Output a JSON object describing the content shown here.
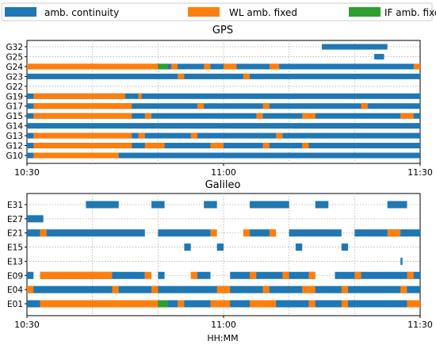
{
  "colors": {
    "continuity": "#1f77b4",
    "wl_fixed": "#ff7f0e",
    "if_fixed": "#2ca02c"
  },
  "legend": {
    "items": [
      {
        "label": "amb. continuity",
        "color": "#1f77b4"
      },
      {
        "label": "WL amb. fixed",
        "color": "#ff7f0e"
      },
      {
        "label": "IF amb. fixed",
        "color": "#2ca02c"
      }
    ]
  },
  "xlabel": "HH:MM",
  "chart_data": [
    {
      "type": "timeline",
      "title": "GPS",
      "xlim": [
        "10:30",
        "11:30"
      ],
      "xticks": [
        "10:30",
        "11:00",
        "11:30"
      ],
      "grid": true,
      "satellites": [
        {
          "name": "G32",
          "continuity": [
            [
              "11:15",
              "11:25"
            ]
          ],
          "wl_fixed": [],
          "if_fixed": []
        },
        {
          "name": "G25",
          "continuity": [
            [
              "11:23",
              "11:24.5"
            ]
          ],
          "wl_fixed": [],
          "if_fixed": []
        },
        {
          "name": "G24",
          "continuity": [
            [
              "10:30",
              "11:30"
            ]
          ],
          "wl_fixed": [
            [
              "10:30",
              "10:50"
            ],
            [
              "10:52",
              "10:53"
            ],
            [
              "10:57",
              "10:58"
            ],
            [
              "11:00",
              "11:02"
            ],
            [
              "11:07",
              "11:08.5"
            ],
            [
              "11:29",
              "11:30"
            ]
          ],
          "if_fixed": [
            [
              "10:50",
              "10:51.5"
            ]
          ]
        },
        {
          "name": "G23",
          "continuity": [
            [
              "10:30",
              "11:30"
            ]
          ],
          "wl_fixed": [
            [
              "10:53",
              "10:54"
            ],
            [
              "11:03",
              "11:04"
            ]
          ],
          "if_fixed": []
        },
        {
          "name": "G22",
          "continuity": [],
          "wl_fixed": [],
          "if_fixed": []
        },
        {
          "name": "G19",
          "continuity": [
            [
              "10:30",
              "11:30"
            ]
          ],
          "wl_fixed": [
            [
              "10:31",
              "10:45"
            ],
            [
              "10:47",
              "10:47.5"
            ]
          ],
          "if_fixed": []
        },
        {
          "name": "G17",
          "continuity": [
            [
              "10:30",
              "11:30"
            ]
          ],
          "wl_fixed": [
            [
              "10:31",
              "10:46"
            ],
            [
              "10:56",
              "10:57"
            ],
            [
              "11:06",
              "11:07"
            ],
            [
              "11:21",
              "11:22"
            ]
          ],
          "if_fixed": []
        },
        {
          "name": "G15",
          "continuity": [
            [
              "10:30",
              "11:30"
            ]
          ],
          "wl_fixed": [
            [
              "10:31",
              "10:46"
            ],
            [
              "10:48",
              "10:49"
            ],
            [
              "11:05",
              "11:06"
            ],
            [
              "11:12",
              "11:14"
            ],
            [
              "11:27",
              "11:29"
            ]
          ],
          "if_fixed": []
        },
        {
          "name": "G14",
          "continuity": [
            [
              "10:30",
              "11:30"
            ]
          ],
          "wl_fixed": [],
          "if_fixed": []
        },
        {
          "name": "G13",
          "continuity": [
            [
              "10:30",
              "11:30"
            ]
          ],
          "wl_fixed": [
            [
              "10:31",
              "10:46"
            ],
            [
              "10:47",
              "10:48"
            ],
            [
              "10:55",
              "10:56"
            ],
            [
              "11:08",
              "11:09"
            ]
          ],
          "if_fixed": []
        },
        {
          "name": "G12",
          "continuity": [
            [
              "10:30",
              "11:30"
            ]
          ],
          "wl_fixed": [
            [
              "10:31",
              "10:46"
            ],
            [
              "10:48",
              "10:51"
            ],
            [
              "10:58",
              "11:00"
            ],
            [
              "11:06",
              "11:07"
            ],
            [
              "11:12",
              "11:13"
            ]
          ],
          "if_fixed": []
        },
        {
          "name": "G10",
          "continuity": [
            [
              "10:30",
              "11:30"
            ]
          ],
          "wl_fixed": [
            [
              "10:31",
              "10:44"
            ]
          ],
          "if_fixed": []
        }
      ]
    },
    {
      "type": "timeline",
      "title": "Galileo",
      "xlim": [
        "10:30",
        "11:30"
      ],
      "xticks": [
        "10:30",
        "11:00",
        "11:30"
      ],
      "grid": true,
      "satellites": [
        {
          "name": "E31",
          "continuity": [
            [
              "10:39",
              "10:44"
            ],
            [
              "10:49",
              "10:51"
            ],
            [
              "10:57",
              "10:59"
            ],
            [
              "11:04",
              "11:10"
            ],
            [
              "11:14",
              "11:16"
            ],
            [
              "11:25",
              "11:28"
            ]
          ],
          "wl_fixed": [],
          "if_fixed": []
        },
        {
          "name": "E27",
          "continuity": [
            [
              "10:30",
              "10:32.5"
            ]
          ],
          "wl_fixed": [],
          "if_fixed": []
        },
        {
          "name": "E21",
          "continuity": [
            [
              "10:30",
              "10:48"
            ],
            [
              "10:50",
              "10:58"
            ],
            [
              "11:04",
              "11:08"
            ],
            [
              "11:10",
              "11:18"
            ],
            [
              "11:20",
              "11:30"
            ]
          ],
          "wl_fixed": [
            [
              "10:32",
              "10:33"
            ],
            [
              "10:58",
              "10:59"
            ],
            [
              "11:03",
              "11:04"
            ],
            [
              "11:07",
              "11:08"
            ],
            [
              "11:25",
              "11:27"
            ]
          ],
          "if_fixed": []
        },
        {
          "name": "E15",
          "continuity": [
            [
              "10:54",
              "10:55"
            ],
            [
              "10:59",
              "11:00"
            ],
            [
              "11:11",
              "11:12"
            ],
            [
              "11:18",
              "11:19"
            ]
          ],
          "wl_fixed": [],
          "if_fixed": []
        },
        {
          "name": "E13",
          "continuity": [
            [
              "11:27",
              "11:27.3"
            ]
          ],
          "wl_fixed": [],
          "if_fixed": []
        },
        {
          "name": "E09",
          "continuity": [
            [
              "10:30",
              "10:31"
            ],
            [
              "10:32",
              "10:48"
            ],
            [
              "10:50",
              "10:51"
            ],
            [
              "10:56",
              "10:58"
            ],
            [
              "11:01",
              "11:14"
            ],
            [
              "11:17",
              "11:30"
            ]
          ],
          "wl_fixed": [
            [
              "10:32",
              "10:43"
            ],
            [
              "10:48",
              "10:49"
            ],
            [
              "10:55",
              "10:56"
            ],
            [
              "11:04",
              "11:05"
            ],
            [
              "11:09",
              "11:10"
            ],
            [
              "11:13",
              "11:14"
            ],
            [
              "11:20",
              "11:21"
            ],
            [
              "11:28",
              "11:29"
            ]
          ],
          "if_fixed": []
        },
        {
          "name": "E04",
          "continuity": [
            [
              "10:30",
              "11:30"
            ]
          ],
          "wl_fixed": [
            [
              "10:30",
              "10:31"
            ],
            [
              "10:43",
              "10:44"
            ],
            [
              "10:49",
              "10:50"
            ],
            [
              "10:59",
              "11:01"
            ],
            [
              "11:06",
              "11:07"
            ],
            [
              "11:12",
              "11:14"
            ],
            [
              "11:18",
              "11:19"
            ],
            [
              "11:27",
              "11:28"
            ]
          ],
          "if_fixed": []
        },
        {
          "name": "E01",
          "continuity": [
            [
              "10:30",
              "11:30"
            ]
          ],
          "wl_fixed": [
            [
              "10:32",
              "10:50"
            ],
            [
              "10:53",
              "10:54"
            ],
            [
              "10:58",
              "11:01"
            ],
            [
              "11:04",
              "11:08"
            ],
            [
              "11:13",
              "11:14"
            ],
            [
              "11:18",
              "11:19"
            ],
            [
              "11:28",
              "11:30"
            ]
          ],
          "if_fixed": [
            [
              "10:50",
              "10:51.5"
            ]
          ]
        }
      ]
    }
  ]
}
